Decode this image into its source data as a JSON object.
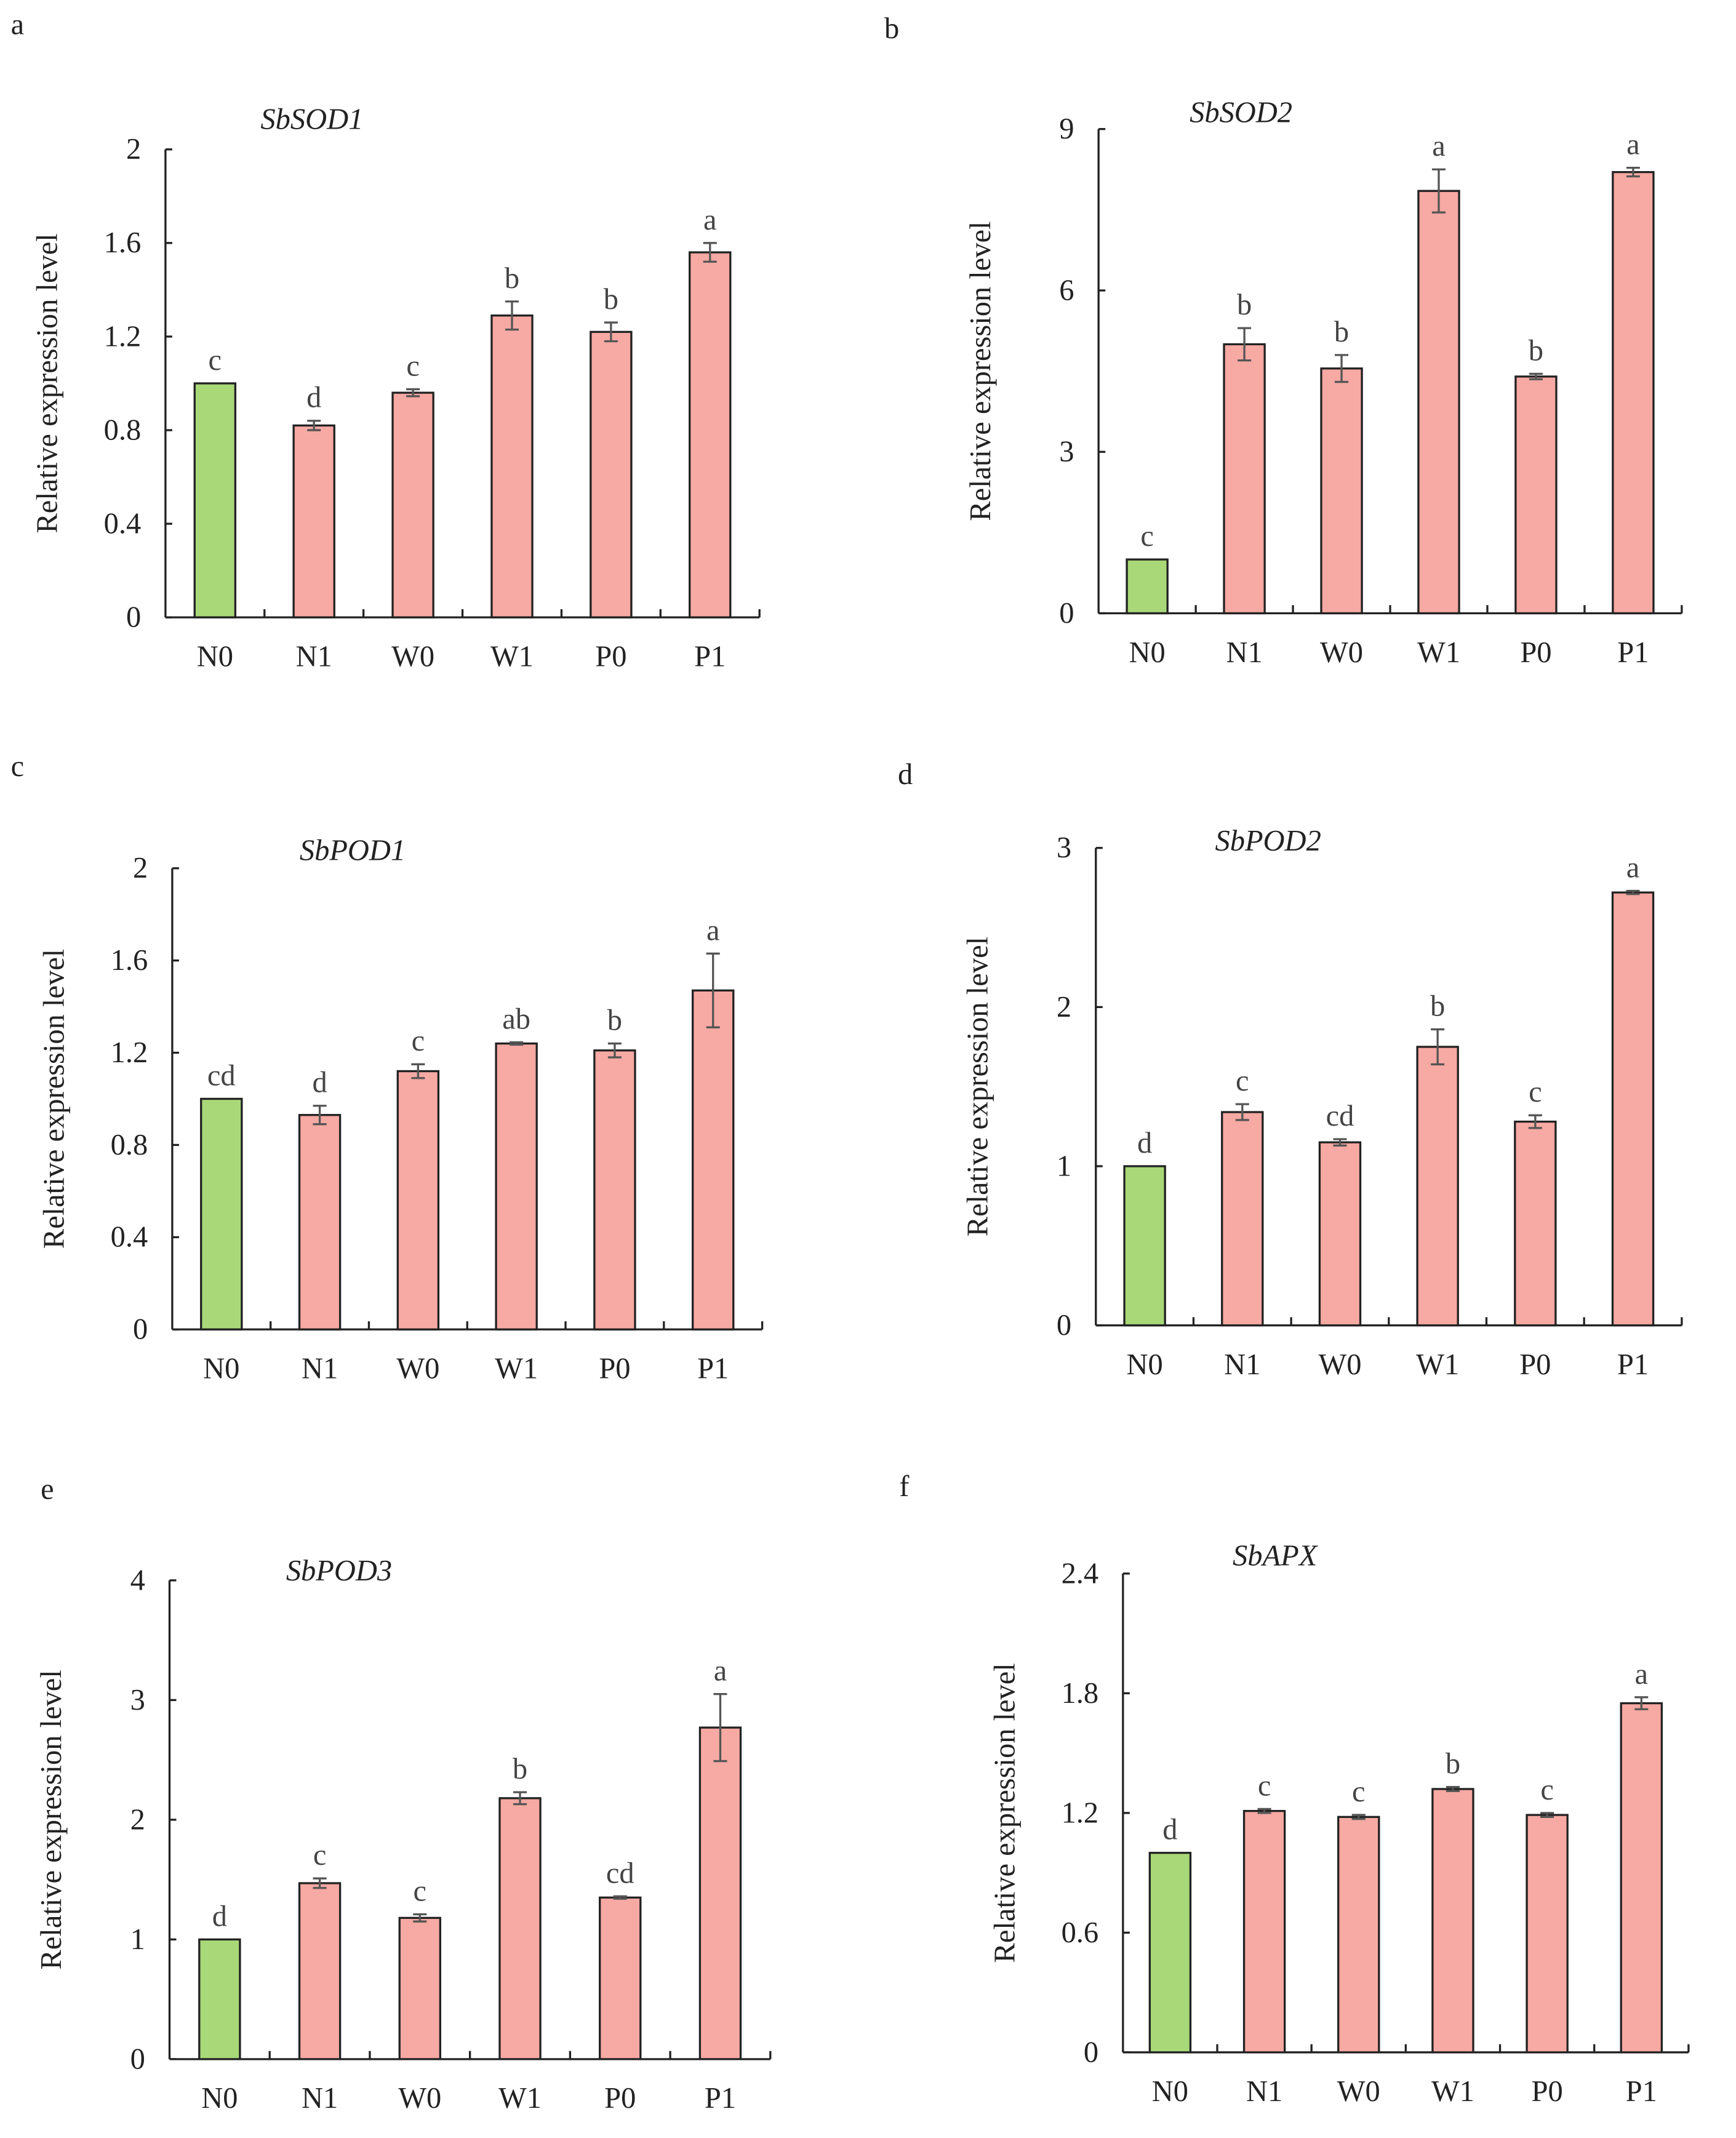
{
  "colors": {
    "control": "#a8d878",
    "treatment": "#f7a9a3",
    "axis": "#222222",
    "error": "#555555"
  },
  "chart_data": [
    {
      "type": "bar",
      "panel": "a",
      "title": "SbSOD1",
      "ylabel": "Relative expression level",
      "categories": [
        "N0",
        "N1",
        "W0",
        "W1",
        "P0",
        "P1"
      ],
      "values": [
        1.0,
        0.82,
        0.96,
        1.29,
        1.22,
        1.56
      ],
      "errors": [
        0,
        0.02,
        0.015,
        0.06,
        0.04,
        0.04
      ],
      "letters": [
        "c",
        "d",
        "c",
        "b",
        "b",
        "a"
      ],
      "ylim": [
        0,
        2
      ],
      "yticks": [
        "0",
        "0.4",
        "0.8",
        "1.2",
        "1.6",
        "2"
      ]
    },
    {
      "type": "bar",
      "panel": "b",
      "title": "SbSOD2",
      "ylabel": "Relative expression level",
      "categories": [
        "N0",
        "N1",
        "W0",
        "W1",
        "P0",
        "P1"
      ],
      "values": [
        1.0,
        5.0,
        4.55,
        7.85,
        4.4,
        8.2
      ],
      "errors": [
        0,
        0.3,
        0.25,
        0.4,
        0.05,
        0.08
      ],
      "letters": [
        "c",
        "b",
        "b",
        "a",
        "b",
        "a"
      ],
      "ylim": [
        0,
        9
      ],
      "yticks": [
        "0",
        "3",
        "6",
        "9"
      ]
    },
    {
      "type": "bar",
      "panel": "c",
      "title": "SbPOD1",
      "ylabel": "Relative expression level",
      "categories": [
        "N0",
        "N1",
        "W0",
        "W1",
        "P0",
        "P1"
      ],
      "values": [
        1.0,
        0.93,
        1.12,
        1.24,
        1.21,
        1.47
      ],
      "errors": [
        0,
        0.04,
        0.03,
        0.005,
        0.03,
        0.16
      ],
      "letters": [
        "cd",
        "d",
        "c",
        "ab",
        "b",
        "a"
      ],
      "ylim": [
        0,
        2
      ],
      "yticks": [
        "0",
        "0.4",
        "0.8",
        "1.2",
        "1.6",
        "2"
      ]
    },
    {
      "type": "bar",
      "panel": "d",
      "title": "SbPOD2",
      "ylabel": "Relative expression level",
      "categories": [
        "N0",
        "N1",
        "W0",
        "W1",
        "P0",
        "P1"
      ],
      "values": [
        1.0,
        1.34,
        1.15,
        1.75,
        1.28,
        2.72
      ],
      "errors": [
        0,
        0.05,
        0.02,
        0.11,
        0.04,
        0.01
      ],
      "letters": [
        "d",
        "c",
        "cd",
        "b",
        "c",
        "a"
      ],
      "ylim": [
        0,
        3
      ],
      "yticks": [
        "0",
        "1",
        "2",
        "3"
      ]
    },
    {
      "type": "bar",
      "panel": "e",
      "title": "SbPOD3",
      "ylabel": "Relative expression level",
      "categories": [
        "N0",
        "N1",
        "W0",
        "W1",
        "P0",
        "P1"
      ],
      "values": [
        1.0,
        1.47,
        1.18,
        2.18,
        1.35,
        2.77
      ],
      "errors": [
        0,
        0.04,
        0.03,
        0.05,
        0.01,
        0.28
      ],
      "letters": [
        "d",
        "c",
        "c",
        "b",
        "cd",
        "a"
      ],
      "ylim": [
        0,
        4
      ],
      "yticks": [
        "0",
        "1",
        "2",
        "3",
        "4"
      ]
    },
    {
      "type": "bar",
      "panel": "f",
      "title": "SbAPX",
      "ylabel": "Relative expression level",
      "categories": [
        "N0",
        "N1",
        "W0",
        "W1",
        "P0",
        "P1"
      ],
      "values": [
        1.0,
        1.21,
        1.18,
        1.32,
        1.19,
        1.75
      ],
      "errors": [
        0,
        0.01,
        0.01,
        0.01,
        0.01,
        0.03
      ],
      "letters": [
        "d",
        "c",
        "c",
        "b",
        "c",
        "a"
      ],
      "ylim": [
        0,
        2.4
      ],
      "yticks": [
        "0",
        "0.6",
        "1.2",
        "1.8",
        "2.4"
      ]
    }
  ]
}
